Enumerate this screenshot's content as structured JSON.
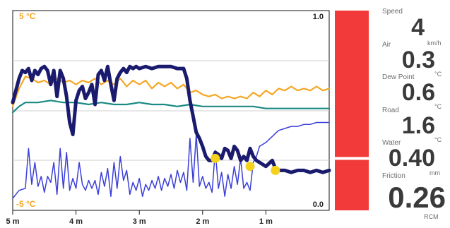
{
  "chart_data": {
    "type": "line",
    "temp_top_label": "5 °C",
    "temp_bottom_label": "-5 °C",
    "friction_top_label": "1.0",
    "friction_bottom_label": "0.0",
    "x_ticks": [
      {
        "label": "5 m",
        "minutes": 5
      },
      {
        "label": "4 m",
        "minutes": 4
      },
      {
        "label": "3 m",
        "minutes": 3
      },
      {
        "label": "2 m",
        "minutes": 2
      },
      {
        "label": "1 m",
        "minutes": 1
      }
    ],
    "x_range_minutes": [
      5,
      0
    ],
    "temp_range_c": [
      -5,
      5
    ],
    "series": [
      {
        "key": "air",
        "color": "#f5a623",
        "values": [
          [
            5.0,
            0.2
          ],
          [
            4.9,
            1.1
          ],
          [
            4.8,
            1.7
          ],
          [
            4.7,
            1.6
          ],
          [
            4.6,
            1.4
          ],
          [
            4.5,
            1.5
          ],
          [
            4.4,
            1.3
          ],
          [
            4.3,
            1.6
          ],
          [
            4.2,
            1.4
          ],
          [
            4.1,
            1.5
          ],
          [
            4.0,
            1.3
          ],
          [
            3.9,
            1.5
          ],
          [
            3.8,
            1.4
          ],
          [
            3.7,
            1.6
          ],
          [
            3.6,
            1.3
          ],
          [
            3.5,
            1.5
          ],
          [
            3.4,
            1.3
          ],
          [
            3.3,
            1.6
          ],
          [
            3.2,
            1.2
          ],
          [
            3.1,
            1.5
          ],
          [
            3.0,
            1.3
          ],
          [
            2.9,
            1.5
          ],
          [
            2.8,
            1.1
          ],
          [
            2.7,
            1.4
          ],
          [
            2.6,
            1.2
          ],
          [
            2.5,
            1.4
          ],
          [
            2.4,
            1.1
          ],
          [
            2.3,
            1.3
          ],
          [
            2.2,
            0.9
          ],
          [
            2.1,
            1.0
          ],
          [
            2.0,
            0.8
          ],
          [
            1.9,
            0.7
          ],
          [
            1.8,
            0.8
          ],
          [
            1.7,
            0.6
          ],
          [
            1.6,
            0.7
          ],
          [
            1.5,
            0.6
          ],
          [
            1.4,
            0.7
          ],
          [
            1.3,
            0.6
          ],
          [
            1.2,
            0.9
          ],
          [
            1.1,
            0.7
          ],
          [
            1.0,
            1.0
          ],
          [
            0.9,
            0.8
          ],
          [
            0.8,
            1.1
          ],
          [
            0.7,
            1.0
          ],
          [
            0.6,
            1.2
          ],
          [
            0.5,
            1.0
          ],
          [
            0.4,
            1.1
          ],
          [
            0.3,
            1.0
          ],
          [
            0.2,
            1.2
          ],
          [
            0.1,
            1.0
          ],
          [
            0.0,
            1.1
          ]
        ]
      },
      {
        "key": "dew_point",
        "color": "#1a8a82",
        "values": [
          [
            5.0,
            -0.1
          ],
          [
            4.9,
            0.2
          ],
          [
            4.8,
            0.4
          ],
          [
            4.6,
            0.4
          ],
          [
            4.4,
            0.5
          ],
          [
            4.2,
            0.4
          ],
          [
            4.0,
            0.4
          ],
          [
            3.8,
            0.3
          ],
          [
            3.6,
            0.4
          ],
          [
            3.4,
            0.3
          ],
          [
            3.2,
            0.3
          ],
          [
            3.0,
            0.4
          ],
          [
            2.8,
            0.3
          ],
          [
            2.6,
            0.3
          ],
          [
            2.4,
            0.2
          ],
          [
            2.2,
            0.3
          ],
          [
            2.0,
            0.2
          ],
          [
            1.8,
            0.2
          ],
          [
            1.6,
            0.2
          ],
          [
            1.4,
            0.2
          ],
          [
            1.2,
            0.2
          ],
          [
            1.0,
            0.1
          ],
          [
            0.8,
            0.1
          ],
          [
            0.6,
            0.1
          ],
          [
            0.4,
            0.1
          ],
          [
            0.2,
            0.1
          ],
          [
            0.0,
            0.1
          ]
        ]
      },
      {
        "key": "water",
        "color": "#3a3fd8",
        "values": [
          [
            5.0,
            -4.4
          ],
          [
            4.9,
            -4.0
          ],
          [
            4.8,
            -3.9
          ],
          [
            4.75,
            -1.9
          ],
          [
            4.7,
            -3.7
          ],
          [
            4.65,
            -2.6
          ],
          [
            4.6,
            -3.8
          ],
          [
            4.55,
            -3.3
          ],
          [
            4.5,
            -4.1
          ],
          [
            4.45,
            -3.3
          ],
          [
            4.4,
            -3.6
          ],
          [
            4.35,
            -2.6
          ],
          [
            4.3,
            -4.2
          ],
          [
            4.25,
            -1.9
          ],
          [
            4.2,
            -3.9
          ],
          [
            4.15,
            -2.1
          ],
          [
            4.1,
            -4.0
          ],
          [
            4.05,
            -3.4
          ],
          [
            4.0,
            -3.9
          ],
          [
            3.95,
            -2.6
          ],
          [
            3.9,
            -3.7
          ],
          [
            3.85,
            -4.0
          ],
          [
            3.8,
            -3.5
          ],
          [
            3.75,
            -3.9
          ],
          [
            3.7,
            -3.5
          ],
          [
            3.65,
            -4.2
          ],
          [
            3.6,
            -3.1
          ],
          [
            3.55,
            -3.8
          ],
          [
            3.5,
            -2.9
          ],
          [
            3.45,
            -4.3
          ],
          [
            3.4,
            -2.6
          ],
          [
            3.35,
            -3.9
          ],
          [
            3.3,
            -2.3
          ],
          [
            3.25,
            -3.5
          ],
          [
            3.2,
            -3.0
          ],
          [
            3.15,
            -4.2
          ],
          [
            3.1,
            -3.6
          ],
          [
            3.05,
            -4.0
          ],
          [
            3.0,
            -3.4
          ],
          [
            2.95,
            -4.3
          ],
          [
            2.9,
            -3.7
          ],
          [
            2.85,
            -4.0
          ],
          [
            2.8,
            -3.5
          ],
          [
            2.75,
            -3.9
          ],
          [
            2.7,
            -3.3
          ],
          [
            2.65,
            -4.0
          ],
          [
            2.6,
            -3.4
          ],
          [
            2.55,
            -3.8
          ],
          [
            2.5,
            -3.2
          ],
          [
            2.45,
            -3.9
          ],
          [
            2.4,
            -3.0
          ],
          [
            2.35,
            -3.6
          ],
          [
            2.3,
            -3.1
          ],
          [
            2.25,
            -4.0
          ],
          [
            2.2,
            -1.4
          ],
          [
            2.15,
            -3.6
          ],
          [
            2.1,
            -1.2
          ],
          [
            2.05,
            -3.8
          ],
          [
            2.0,
            -3.3
          ],
          [
            1.95,
            -3.9
          ],
          [
            1.9,
            -3.6
          ],
          [
            1.85,
            -4.1
          ],
          [
            1.8,
            -2.0
          ],
          [
            1.75,
            -3.9
          ],
          [
            1.7,
            -3.1
          ],
          [
            1.65,
            -4.3
          ],
          [
            1.6,
            -3.2
          ],
          [
            1.55,
            -3.9
          ],
          [
            1.5,
            -2.8
          ],
          [
            1.45,
            -3.7
          ],
          [
            1.4,
            -2.4
          ],
          [
            1.35,
            -3.9
          ],
          [
            1.3,
            -3.6
          ],
          [
            1.25,
            -4.0
          ],
          [
            1.2,
            -2.6
          ],
          [
            1.15,
            -2.3
          ],
          [
            1.1,
            -1.8
          ],
          [
            1.0,
            -1.6
          ],
          [
            0.9,
            -1.3
          ],
          [
            0.8,
            -1.0
          ],
          [
            0.7,
            -0.9
          ],
          [
            0.6,
            -0.8
          ],
          [
            0.5,
            -0.8
          ],
          [
            0.4,
            -0.7
          ],
          [
            0.3,
            -0.7
          ],
          [
            0.2,
            -0.6
          ],
          [
            0.1,
            -0.6
          ],
          [
            0.0,
            -0.6
          ]
        ]
      },
      {
        "key": "road",
        "color": "#1a1a6e",
        "values": [
          [
            5.0,
            0.4
          ],
          [
            4.95,
            1.0
          ],
          [
            4.9,
            1.6
          ],
          [
            4.85,
            2.0
          ],
          [
            4.8,
            1.9
          ],
          [
            4.75,
            2.1
          ],
          [
            4.7,
            1.5
          ],
          [
            4.65,
            2.0
          ],
          [
            4.6,
            1.8
          ],
          [
            4.55,
            2.1
          ],
          [
            4.5,
            2.2
          ],
          [
            4.45,
            2.0
          ],
          [
            4.4,
            1.3
          ],
          [
            4.35,
            2.0
          ],
          [
            4.3,
            0.7
          ],
          [
            4.25,
            2.0
          ],
          [
            4.2,
            1.6
          ],
          [
            4.15,
            0.7
          ],
          [
            4.1,
            -0.6
          ],
          [
            4.05,
            -1.2
          ],
          [
            4.0,
            0.5
          ],
          [
            3.95,
            1.0
          ],
          [
            3.9,
            1.2
          ],
          [
            3.85,
            0.6
          ],
          [
            3.8,
            0.9
          ],
          [
            3.75,
            1.3
          ],
          [
            3.7,
            0.3
          ],
          [
            3.65,
            1.8
          ],
          [
            3.6,
            2.0
          ],
          [
            3.55,
            1.5
          ],
          [
            3.5,
            2.2
          ],
          [
            3.45,
            1.3
          ],
          [
            3.4,
            0.5
          ],
          [
            3.35,
            1.6
          ],
          [
            3.3,
            1.9
          ],
          [
            3.25,
            2.1
          ],
          [
            3.2,
            1.9
          ],
          [
            3.15,
            2.2
          ],
          [
            3.1,
            2.1
          ],
          [
            3.05,
            2.2
          ],
          [
            3.0,
            2.1
          ],
          [
            2.9,
            2.2
          ],
          [
            2.8,
            2.1
          ],
          [
            2.7,
            2.2
          ],
          [
            2.6,
            2.2
          ],
          [
            2.5,
            2.2
          ],
          [
            2.4,
            2.1
          ],
          [
            2.3,
            2.1
          ],
          [
            2.25,
            1.6
          ],
          [
            2.2,
            0.5
          ],
          [
            2.15,
            -0.3
          ],
          [
            2.1,
            -1.1
          ],
          [
            2.05,
            -1.4
          ],
          [
            2.0,
            -1.8
          ],
          [
            1.95,
            -2.3
          ],
          [
            1.9,
            -2.5
          ],
          [
            1.85,
            -2.5
          ],
          [
            1.8,
            -2.1
          ],
          [
            1.75,
            -2.2
          ],
          [
            1.7,
            -2.4
          ],
          [
            1.65,
            -1.9
          ],
          [
            1.6,
            -2.0
          ],
          [
            1.55,
            -2.4
          ],
          [
            1.5,
            -1.8
          ],
          [
            1.45,
            -2.0
          ],
          [
            1.4,
            -2.5
          ],
          [
            1.35,
            -2.3
          ],
          [
            1.3,
            -2.5
          ],
          [
            1.25,
            -1.9
          ],
          [
            1.2,
            -2.3
          ],
          [
            1.15,
            -2.5
          ],
          [
            1.1,
            -2.6
          ],
          [
            1.0,
            -2.8
          ],
          [
            0.9,
            -2.5
          ],
          [
            0.85,
            -2.9
          ],
          [
            0.8,
            -3.0
          ],
          [
            0.7,
            -3.0
          ],
          [
            0.6,
            -3.1
          ],
          [
            0.5,
            -3.0
          ],
          [
            0.4,
            -3.0
          ],
          [
            0.3,
            -3.1
          ],
          [
            0.2,
            -3.0
          ],
          [
            0.1,
            -3.1
          ],
          [
            0.0,
            -3.0
          ]
        ]
      }
    ],
    "markers": [
      {
        "minutes": 1.8,
        "temp_c": -2.4,
        "color": "#f3d11c"
      },
      {
        "minutes": 1.25,
        "temp_c": -2.8,
        "color": "#f3d11c"
      },
      {
        "minutes": 0.85,
        "temp_c": -3.0,
        "color": "#f3d11c"
      }
    ]
  },
  "friction_bar": {
    "value": 0.26,
    "color": "#f23a3a"
  },
  "readouts": {
    "speed": {
      "label": "Speed",
      "value": "4",
      "unit": "km/h"
    },
    "air": {
      "label": "Air",
      "value": "0.3",
      "unit": "°C"
    },
    "dew_point": {
      "label": "Dew Point",
      "value": "0.6",
      "unit": "°C"
    },
    "road": {
      "label": "Road",
      "value": "1.6",
      "unit": "°C"
    },
    "water": {
      "label": "Water",
      "value": "0.40",
      "unit": "mm"
    },
    "friction": {
      "label": "Friction",
      "value": "0.26",
      "unit": "RCM"
    }
  }
}
